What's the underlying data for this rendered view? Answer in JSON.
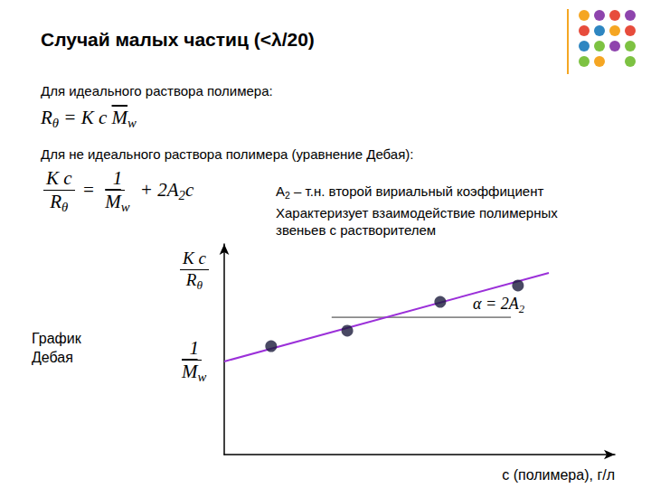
{
  "slide": {
    "title": "Случай малых частиц (<λ/20)",
    "ideal_text": "Для идеального раствора полимера:",
    "ideal_formula": [
      {
        "t": "R",
        "sub": "θ"
      },
      {
        "t": " = K c "
      },
      {
        "t": "M",
        "sub": "w",
        "over": true
      }
    ],
    "nonideal_text": "Для не идеального раствора полимера (уравнение Дебая):",
    "debye_formula": [
      {
        "num": [
          {
            "t": "K c"
          }
        ],
        "den": [
          {
            "t": "R",
            "sub": "θ"
          }
        ]
      },
      {
        "t": " = "
      },
      {
        "num": [
          {
            "t": "1"
          }
        ],
        "den": [
          {
            "t": "M",
            "sub": "w",
            "over": true
          }
        ]
      },
      {
        "t": " + 2"
      },
      {
        "t": "A",
        "sub": "2"
      },
      {
        "t": "c"
      }
    ],
    "a2_note": [
      [
        {
          "t": "A",
          "sub": "2"
        },
        {
          "t": " – т.н. второй вириальный коэффициент"
        }
      ],
      [
        {
          "t": "Характеризует взаимодействие полимерных"
        }
      ],
      [
        {
          "t": "звеньев с растворителем"
        }
      ]
    ],
    "plot_caption": "График\nДебая"
  },
  "chart_data": {
    "type": "scatter",
    "x": [
      1.2,
      3.15,
      5.53,
      7.52
    ],
    "values": [
      5.15,
      5.88,
      7.25,
      8.03
    ],
    "color": "#1c1c3c",
    "marker": "circle",
    "fit": {
      "x": [
        0,
        8.31
      ],
      "values": [
        4.42,
        8.63
      ],
      "color": "#9b30d9",
      "line_style": "solid"
    },
    "slope_annotation": {
      "text": [
        {
          "t": "α = 2"
        },
        {
          "t": "A",
          "sub": "2"
        }
      ],
      "x": [
        2.75,
        7.34
      ],
      "y": 6.52
    },
    "y_label": {
      "num": [
        {
          "t": "K c"
        }
      ],
      "den": [
        {
          "t": "R",
          "sub": "θ"
        }
      ]
    },
    "intercept_label": {
      "num": [
        {
          "t": "1"
        }
      ],
      "den": [
        {
          "t": "M",
          "sub": "w",
          "over": true
        }
      ]
    },
    "x_label": "c (полимера), г/л",
    "xlim": [
      0,
      10
    ],
    "ylim": [
      0,
      10
    ],
    "tick_labels": false,
    "grid": false
  }
}
